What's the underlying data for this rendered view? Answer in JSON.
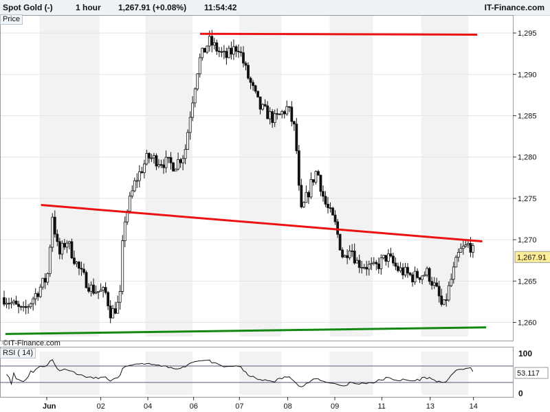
{
  "header": {
    "instrument": "Spot Gold (-)",
    "interval": "1 hour",
    "last_change": "1,267.91 (+0.08%)",
    "time": "11:54:42",
    "brand": "IT-Finance.com"
  },
  "price_panel_label": "Price",
  "rsi_panel_label": "RSI ( 14)",
  "watermark": "©IT-Finance.com",
  "last_price_tag": "1,267.91",
  "rsi_value_tag": "53.117",
  "colors": {
    "resistance": "#ee1111",
    "support": "#118811",
    "candle_up": "#ffffff",
    "candle_down": "#111111",
    "rsi_line": "#111111",
    "rsi_overbought_fill": "#cc8899",
    "last_tag": "#ffee99"
  },
  "chart_data": [
    {
      "type": "candlestick",
      "title": "Spot Gold (-) 1 hour",
      "ylabel": "Price",
      "ylim": [
        1258.3,
        1296.5
      ],
      "y_ticks": [
        1260,
        1265,
        1270,
        1275,
        1280,
        1285,
        1290,
        1295
      ],
      "y_tick_labels": [
        "1,260",
        "1,265",
        "1,270",
        "1,275",
        "1,280",
        "1,285",
        "1,290",
        "1,295"
      ],
      "x_labels": [
        "Jun",
        "02",
        "04",
        "06",
        "07",
        "08",
        "09",
        "11",
        "13",
        "14"
      ],
      "last_price": 1267.91,
      "close_path": [
        [
          0,
          1263
        ],
        [
          1.5,
          1261.2
        ],
        [
          3.4,
          1265.5
        ],
        [
          3.8,
          1273
        ],
        [
          4.3,
          1268
        ],
        [
          4.9,
          1270
        ],
        [
          6,
          1266
        ],
        [
          6.9,
          1264
        ],
        [
          8,
          1263.5
        ],
        [
          8.4,
          1261
        ],
        [
          9.1,
          1262.5
        ],
        [
          9.4,
          1272
        ],
        [
          10.3,
          1277
        ],
        [
          11.3,
          1280
        ],
        [
          12.3,
          1279.5
        ],
        [
          13.4,
          1279
        ],
        [
          14.2,
          1280.5
        ],
        [
          14.7,
          1286
        ],
        [
          15.3,
          1291.5
        ],
        [
          16.1,
          1294
        ],
        [
          17.4,
          1292
        ],
        [
          18.4,
          1293.5
        ],
        [
          19.1,
          1290
        ],
        [
          20.1,
          1286
        ],
        [
          21.3,
          1284.5
        ],
        [
          22.3,
          1286
        ],
        [
          22.9,
          1283
        ],
        [
          23.3,
          1273
        ],
        [
          24.2,
          1277
        ],
        [
          24.6,
          1278.5
        ],
        [
          25.2,
          1274.5
        ],
        [
          26,
          1272
        ],
        [
          26.7,
          1267.5
        ],
        [
          27.2,
          1269.5
        ],
        [
          27.7,
          1267.3
        ],
        [
          29.1,
          1266.5
        ],
        [
          30.1,
          1268
        ],
        [
          30.9,
          1266.5
        ],
        [
          32.1,
          1265.5
        ],
        [
          33.3,
          1266
        ],
        [
          34.1,
          1263.5
        ],
        [
          34.5,
          1261.5
        ],
        [
          35.3,
          1266
        ],
        [
          35.8,
          1268.5
        ],
        [
          36.6,
          1269.5
        ],
        [
          36.9,
          1268.4
        ]
      ],
      "annotations": [
        {
          "label": "resistance",
          "from": [
            15.4,
            1294.9
          ],
          "to": [
            37.2,
            1294.8
          ]
        },
        {
          "label": "descending trendline",
          "from": [
            2.9,
            1274.2
          ],
          "to": [
            37.6,
            1269.8
          ]
        },
        {
          "label": "support",
          "from": [
            0.1,
            1258.6
          ],
          "to": [
            37.9,
            1259.4
          ]
        }
      ]
    },
    {
      "type": "line",
      "title": "RSI ( 14)",
      "ylim": [
        0,
        100
      ],
      "y_ticks": [
        0,
        100
      ],
      "y_tick_labels": [
        "0",
        "100"
      ],
      "levels": [
        70,
        30
      ],
      "last_value": 53.117
    }
  ]
}
